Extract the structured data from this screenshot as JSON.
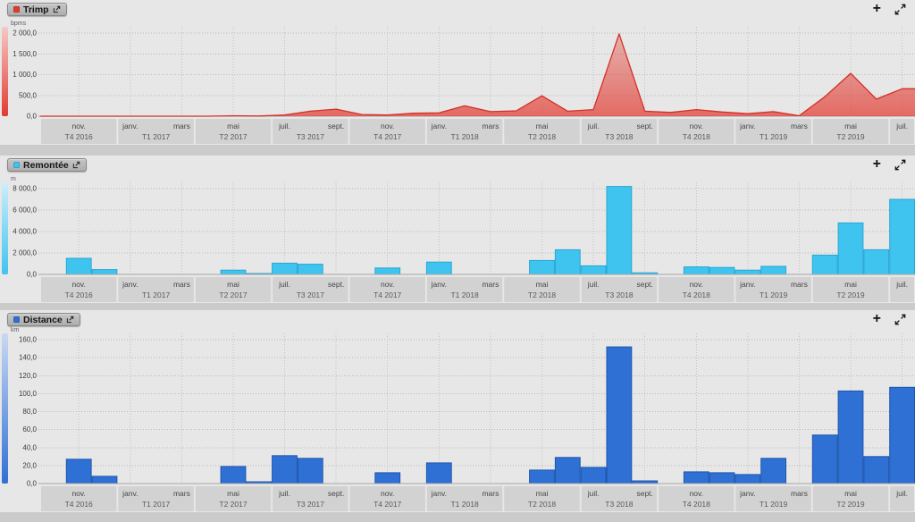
{
  "app": {
    "background": "#cbcbcb"
  },
  "header_actions": {
    "add_label": "+"
  },
  "axis": {
    "months": [
      "2016-10",
      "2016-11",
      "2016-12",
      "2017-01",
      "2017-02",
      "2017-03",
      "2017-04",
      "2017-05",
      "2017-06",
      "2017-07",
      "2017-08",
      "2017-09",
      "2017-10",
      "2017-11",
      "2017-12",
      "2018-01",
      "2018-02",
      "2018-03",
      "2018-04",
      "2018-05",
      "2018-06",
      "2018-07",
      "2018-08",
      "2018-09",
      "2018-10",
      "2018-11",
      "2018-12",
      "2019-01",
      "2019-02",
      "2019-03",
      "2019-04",
      "2019-05",
      "2019-06",
      "2019-07"
    ],
    "month_ticks": [
      {
        "i": 1,
        "label": "nov."
      },
      {
        "i": 3,
        "label": "janv."
      },
      {
        "i": 5,
        "label": "mars"
      },
      {
        "i": 7,
        "label": "mai"
      },
      {
        "i": 9,
        "label": "juil."
      },
      {
        "i": 11,
        "label": "sept."
      },
      {
        "i": 13,
        "label": "nov."
      },
      {
        "i": 15,
        "label": "janv."
      },
      {
        "i": 17,
        "label": "mars"
      },
      {
        "i": 19,
        "label": "mai"
      },
      {
        "i": 21,
        "label": "juil."
      },
      {
        "i": 23,
        "label": "sept."
      },
      {
        "i": 25,
        "label": "nov."
      },
      {
        "i": 27,
        "label": "janv."
      },
      {
        "i": 29,
        "label": "mars"
      },
      {
        "i": 31,
        "label": "mai"
      },
      {
        "i": 33,
        "label": "juil."
      }
    ],
    "quarters": [
      {
        "label": "T4 2016",
        "start": 0,
        "span": 3
      },
      {
        "label": "T1 2017",
        "start": 3,
        "span": 3
      },
      {
        "label": "T2 2017",
        "start": 6,
        "span": 3
      },
      {
        "label": "T3 2017",
        "start": 9,
        "span": 3
      },
      {
        "label": "T4 2017",
        "start": 12,
        "span": 3
      },
      {
        "label": "T1 2018",
        "start": 15,
        "span": 3
      },
      {
        "label": "T2 2018",
        "start": 18,
        "span": 3
      },
      {
        "label": "T3 2018",
        "start": 21,
        "span": 3
      },
      {
        "label": "T4 2018",
        "start": 24,
        "span": 3
      },
      {
        "label": "T1 2019",
        "start": 27,
        "span": 3
      },
      {
        "label": "T2 2019",
        "start": 30,
        "span": 3
      },
      {
        "label": "",
        "start": 33,
        "span": 1
      }
    ]
  },
  "chart_data": [
    {
      "id": "trimp",
      "type": "area",
      "title": "Trimp",
      "unit": "bpms",
      "color": "#e23b31",
      "stroke": "#d32f26",
      "strip_top": "#f6c9c5",
      "y_max": 2000,
      "y_ticks": [
        {
          "v": 2000,
          "label": "2 000,0"
        },
        {
          "v": 1500,
          "label": "1 500,0"
        },
        {
          "v": 1000,
          "label": "1 000,0"
        },
        {
          "v": 500,
          "label": "500,0"
        },
        {
          "v": 0,
          "label": "0,0"
        }
      ],
      "values": [
        0,
        0,
        0,
        0,
        0,
        0,
        0,
        10,
        5,
        30,
        120,
        170,
        40,
        30,
        70,
        80,
        250,
        110,
        130,
        490,
        120,
        160,
        1980,
        120,
        90,
        160,
        100,
        60,
        110,
        10,
        470,
        1030,
        410,
        660
      ]
    },
    {
      "id": "remontee",
      "type": "bar",
      "title": "Remontée",
      "unit": "m",
      "color": "#3fc4ef",
      "stroke": "#2aa6d2",
      "strip_top": "#cdeefb",
      "y_max": 8000,
      "y_ticks": [
        {
          "v": 8000,
          "label": "8 000,0"
        },
        {
          "v": 6000,
          "label": "6 000,0"
        },
        {
          "v": 4000,
          "label": "4 000,0"
        },
        {
          "v": 2000,
          "label": "2 000,0"
        },
        {
          "v": 0,
          "label": "0,0"
        }
      ],
      "values": [
        0,
        1500,
        450,
        0,
        0,
        0,
        0,
        400,
        80,
        1050,
        950,
        0,
        0,
        600,
        0,
        1150,
        0,
        0,
        0,
        1300,
        2300,
        800,
        8200,
        150,
        0,
        700,
        650,
        400,
        750,
        0,
        1800,
        4800,
        2300,
        7000
      ]
    },
    {
      "id": "distance",
      "type": "bar",
      "title": "Distance",
      "unit": "km",
      "color": "#2f70d5",
      "stroke": "#1d55a9",
      "strip_top": "#c9d9f3",
      "y_max": 160,
      "y_ticks": [
        {
          "v": 160,
          "label": "160,0"
        },
        {
          "v": 140,
          "label": "140,0"
        },
        {
          "v": 120,
          "label": "120,0"
        },
        {
          "v": 100,
          "label": "100,0"
        },
        {
          "v": 80,
          "label": "80,0"
        },
        {
          "v": 60,
          "label": "60,0"
        },
        {
          "v": 40,
          "label": "40,0"
        },
        {
          "v": 20,
          "label": "20,0"
        },
        {
          "v": 0,
          "label": "0,0"
        }
      ],
      "values": [
        0,
        27,
        8,
        0,
        0,
        0,
        0,
        19,
        2,
        31,
        28,
        0,
        0,
        12,
        0,
        23,
        0,
        0,
        0,
        15,
        29,
        18,
        152,
        3,
        0,
        13,
        12,
        10,
        28,
        0,
        54,
        103,
        30,
        107
      ]
    }
  ]
}
